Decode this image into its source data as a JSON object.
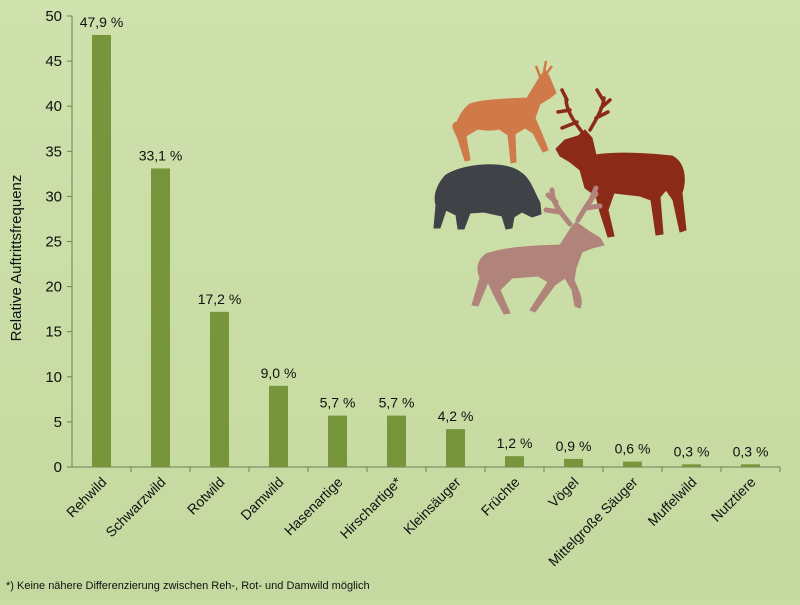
{
  "chart_data": {
    "type": "bar",
    "title": "",
    "xlabel": "",
    "ylabel": "Relative Auftrittsfrequenz",
    "ylim": [
      0,
      50
    ],
    "yticks": [
      0,
      5,
      10,
      15,
      20,
      25,
      30,
      35,
      40,
      45,
      50
    ],
    "categories": [
      "Rehwild",
      "Schwarzwild",
      "Rotwild",
      "Damwild",
      "Hasenartige",
      "Hirschartige*",
      "Kleinsäuger",
      "Früchte",
      "Vögel",
      "Mittelgroße Säuger",
      "Muffelwild",
      "Nutztiere"
    ],
    "values": [
      47.9,
      33.1,
      17.2,
      9.0,
      5.7,
      5.7,
      4.2,
      1.2,
      0.9,
      0.6,
      0.3,
      0.3
    ],
    "data_labels": [
      "47,9 %",
      "33,1 %",
      "17,2 %",
      "9,0 %",
      "5,7 %",
      "5,7 %",
      "4,2 %",
      "1,2 %",
      "0,9 %",
      "0,6 %",
      "0,3 %",
      "0,3 %"
    ],
    "bar_color": "#77963c",
    "grid": false,
    "legend": "none"
  },
  "footnote": "*) Keine nähere Differenzierung zwischen Reh-, Rot- und Damwild möglich",
  "illustration": {
    "icons": [
      "roe-deer-icon",
      "red-deer-icon",
      "wild-boar-icon",
      "fallow-deer-icon"
    ],
    "colors": {
      "roe": "#d07a4a",
      "red": "#8b2a17",
      "boar": "#3f4246",
      "fallow": "#b0847a"
    }
  }
}
